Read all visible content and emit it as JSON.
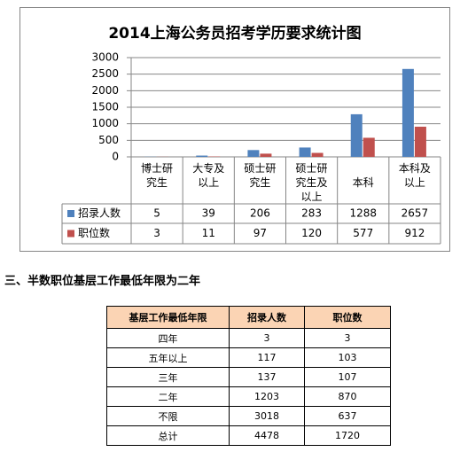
{
  "chart_data": {
    "type": "bar",
    "title": "2014上海公务员招考学历要求统计图",
    "categories": [
      "博士研究生",
      "大专及以上",
      "硕士研究生",
      "硕士研究生及以上",
      "本科",
      "本科及以上"
    ],
    "series": [
      {
        "name": "招录人数",
        "color": "#4f81bd",
        "values": [
          5,
          39,
          206,
          283,
          1288,
          2657
        ]
      },
      {
        "name": "职位数",
        "color": "#c0504d",
        "values": [
          3,
          11,
          97,
          120,
          577,
          912
        ]
      }
    ],
    "ylim": [
      0,
      3000
    ],
    "yticks": [
      0,
      500,
      1000,
      1500,
      2000,
      2500,
      3000
    ],
    "grid": true
  },
  "heading": "三、半数职位基层工作最低年限为二年",
  "table": {
    "header": [
      "基层工作最低年限",
      "招录人数",
      "职位数"
    ],
    "rows": [
      [
        "四年",
        3,
        3
      ],
      [
        "五年以上",
        117,
        103
      ],
      [
        "三年",
        137,
        107
      ],
      [
        "二年",
        1203,
        870
      ],
      [
        "不限",
        3018,
        637
      ],
      [
        "总计",
        4478,
        1720
      ]
    ]
  }
}
